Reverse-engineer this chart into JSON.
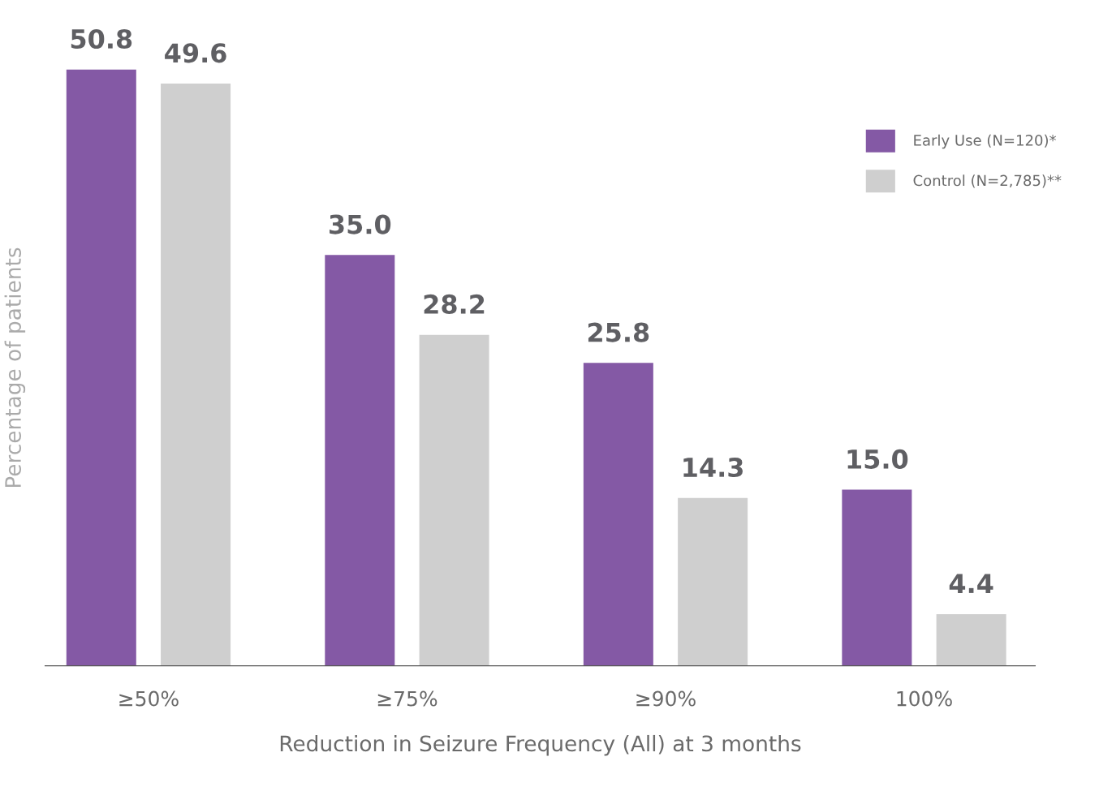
{
  "chart_data": {
    "type": "bar",
    "xlabel": "Reduction in Seizure Frequency (All) at 3 months",
    "ylabel": "Percentage of patients",
    "categories": [
      "≥50%",
      "≥75%",
      "≥90%",
      "100%"
    ],
    "series": [
      {
        "name": "Early Use (N=120)*",
        "color": "#8459a5",
        "values": [
          50.8,
          35.0,
          25.8,
          15.0
        ],
        "value_labels": [
          "50.8",
          "35.0",
          "25.8",
          "15.0"
        ]
      },
      {
        "name": "Control (N=2,785)**",
        "color": "#cfcfcf",
        "values": [
          49.6,
          28.2,
          14.3,
          4.4
        ],
        "value_labels": [
          "49.6",
          "28.2",
          "14.3",
          "4.4"
        ]
      }
    ],
    "legend": "top right",
    "grid": false
  }
}
